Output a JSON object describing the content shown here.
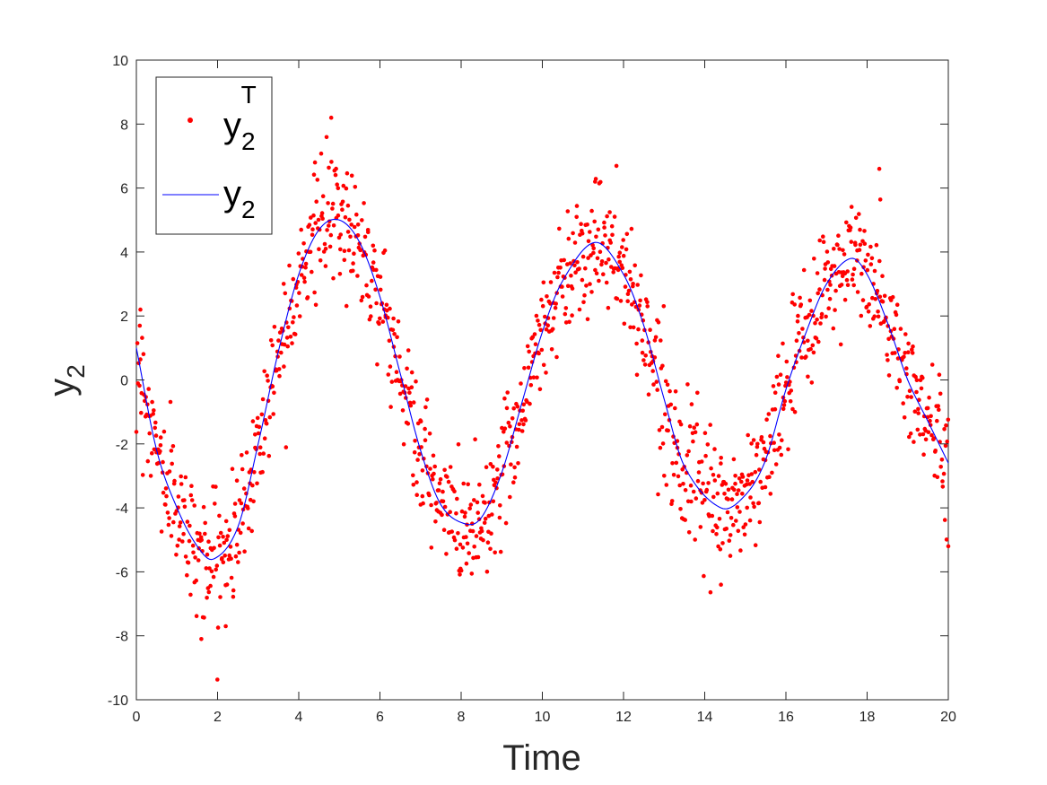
{
  "chart_data": {
    "type": "scatter",
    "xlabel": "Time",
    "ylabel": "y",
    "ylabel_sub": "2",
    "xlim": [
      0,
      20
    ],
    "ylim": [
      -10,
      10
    ],
    "xticks": [
      "0",
      "2",
      "4",
      "6",
      "8",
      "10",
      "12",
      "14",
      "16",
      "18",
      "20"
    ],
    "yticks": [
      "-10",
      "-8",
      "-6",
      "-4",
      "-2",
      "0",
      "2",
      "4",
      "6",
      "8",
      "10"
    ],
    "grid": false,
    "legend": {
      "placement": "top-left",
      "entries": [
        {
          "base": "y",
          "sub": "2",
          "sup": "T",
          "color": "#ff0000",
          "marker": "dot"
        },
        {
          "base": "y",
          "sub": "2",
          "sup": "",
          "color": "#0000ff",
          "marker": "line"
        }
      ]
    },
    "series": [
      {
        "kind": "curve",
        "color": "#0000ff",
        "x": [
          0,
          0.5,
          1,
          1.5,
          1.9,
          2.5,
          3,
          3.5,
          4,
          4.5,
          5,
          5.5,
          6,
          6.5,
          7,
          7.5,
          8.1,
          8.5,
          9,
          9.5,
          10,
          10.5,
          11.3,
          12,
          12.5,
          13,
          13.5,
          14.4,
          15,
          15.5,
          16,
          16.5,
          17,
          17.6,
          18,
          18.5,
          19,
          19.5,
          20
        ],
        "y": [
          1.0,
          -2.2,
          -4.0,
          -5.2,
          -5.6,
          -4.6,
          -2.0,
          0.9,
          3.3,
          4.7,
          5.0,
          4.3,
          2.6,
          0.2,
          -2.2,
          -3.9,
          -4.5,
          -4.3,
          -2.9,
          -0.7,
          1.5,
          3.1,
          4.3,
          3.3,
          1.7,
          -0.6,
          -2.7,
          -4.0,
          -3.6,
          -2.5,
          -0.3,
          1.5,
          3.0,
          3.8,
          3.3,
          1.8,
          0.0,
          -1.3,
          -2.6
        ]
      },
      {
        "kind": "noisy-scatter",
        "color": "#ff0000",
        "count": 1300,
        "noise_sd": 0.95,
        "outliers": [
          [
            0.1,
            2.2
          ],
          [
            1.6,
            -8.1
          ],
          [
            2.2,
            -7.7
          ],
          [
            4.8,
            8.2
          ],
          [
            4.4,
            6.8
          ],
          [
            7.0,
            -3.9
          ],
          [
            11.3,
            6.2
          ],
          [
            14.4,
            -6.4
          ],
          [
            18.3,
            6.6
          ],
          [
            20.0,
            -5.2
          ]
        ]
      }
    ]
  }
}
